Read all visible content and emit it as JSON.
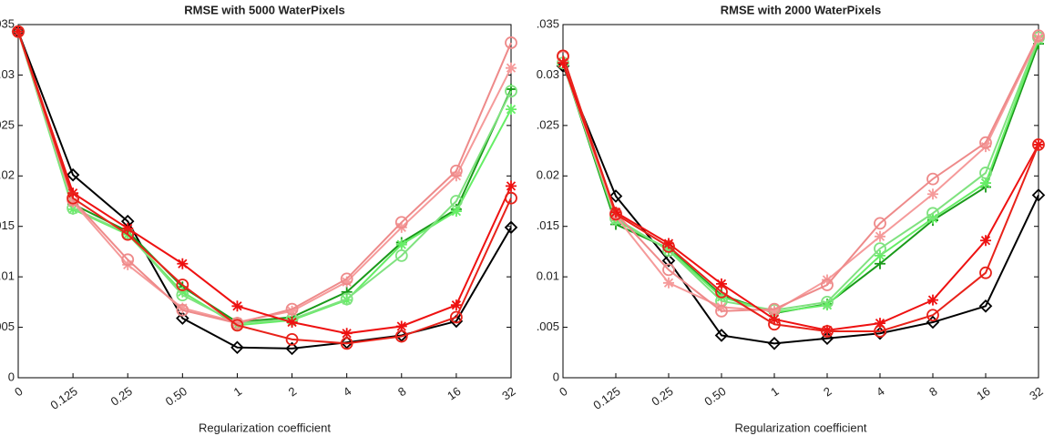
{
  "chart_data": [
    {
      "type": "line",
      "title": "RMSE with 5000 WaterPixels",
      "x_label": "Regularization coefficient",
      "categories": [
        "0",
        "0.125",
        "0.25",
        "0.50",
        "1",
        "2",
        "4",
        "8",
        "16",
        "32"
      ],
      "ylim": [
        0,
        0.035
      ],
      "yticks": [
        0,
        {
          "value": 0.005,
          "label": ".005"
        },
        {
          "value": 0.01,
          "label": "0.01"
        },
        {
          "value": 0.015,
          "label": ".015"
        },
        {
          "value": 0.02,
          "label": "0.02"
        },
        {
          "value": 0.025,
          "label": ".025"
        },
        {
          "value": 0.03,
          "label": "0.03"
        },
        {
          "value": 0.035,
          "label": ".035"
        }
      ],
      "series": [
        {
          "color": "#000000",
          "marker": "diamond",
          "values": [
            0.0343,
            0.0201,
            0.0155,
            0.0059,
            0.003,
            0.0029,
            0.0035,
            0.0042,
            0.0056,
            0.0149
          ]
        },
        {
          "color": "#1a9a1a",
          "marker": "plus",
          "values": [
            0.0343,
            0.0172,
            0.0145,
            0.009,
            0.0055,
            0.006,
            0.0085,
            0.0134,
            0.0167,
            0.0286
          ]
        },
        {
          "color": "#66ee66",
          "marker": "asterisk",
          "values": [
            0.0343,
            0.0167,
            0.0142,
            0.0085,
            0.0052,
            0.0057,
            0.0077,
            0.0132,
            0.0165,
            0.0266
          ]
        },
        {
          "color": "#7fe27f",
          "marker": "circle",
          "values": [
            0.0343,
            0.0168,
            0.0143,
            0.0082,
            0.0054,
            0.0058,
            0.0078,
            0.0121,
            0.0175,
            0.0284
          ]
        },
        {
          "color": "#f59a9a",
          "marker": "asterisk",
          "values": [
            0.0343,
            0.0174,
            0.0112,
            0.0069,
            0.0055,
            0.0066,
            0.0095,
            0.0149,
            0.02,
            0.0307
          ]
        },
        {
          "color": "#ee8a8a",
          "marker": "circle",
          "values": [
            0.0343,
            0.0176,
            0.0117,
            0.0067,
            0.0054,
            0.0068,
            0.0098,
            0.0154,
            0.0205,
            0.0332
          ]
        },
        {
          "color": "#ee1111",
          "marker": "asterisk",
          "values": [
            0.0343,
            0.0183,
            0.0148,
            0.0113,
            0.0071,
            0.0055,
            0.0044,
            0.0051,
            0.0072,
            0.019
          ]
        },
        {
          "color": "#e8221a",
          "marker": "circle",
          "values": [
            0.0343,
            0.0178,
            0.0142,
            0.0092,
            0.0052,
            0.0038,
            0.0034,
            0.0041,
            0.006,
            0.0178
          ]
        }
      ]
    },
    {
      "type": "line",
      "title": "RMSE with 2000 WaterPixels",
      "x_label": "Regularization coefficient",
      "categories": [
        "0",
        "0.125",
        "0.25",
        "0.50",
        "1",
        "2",
        "4",
        "8",
        "16",
        "32"
      ],
      "ylim": [
        0,
        0.035
      ],
      "yticks": [
        0,
        {
          "value": 0.005,
          "label": ".005"
        },
        {
          "value": 0.01,
          "label": "0.01"
        },
        {
          "value": 0.015,
          "label": ".015"
        },
        {
          "value": 0.02,
          "label": "0.02"
        },
        {
          "value": 0.025,
          "label": ".025"
        },
        {
          "value": 0.03,
          "label": "0.03"
        },
        {
          "value": 0.035,
          "label": ".035"
        }
      ],
      "series": [
        {
          "color": "#000000",
          "marker": "diamond",
          "values": [
            0.0309,
            0.018,
            0.0116,
            0.0042,
            0.0034,
            0.0039,
            0.0044,
            0.0055,
            0.0071,
            0.0181
          ]
        },
        {
          "color": "#1a9a1a",
          "marker": "plus",
          "values": [
            0.0312,
            0.0152,
            0.0128,
            0.0082,
            0.0064,
            0.0073,
            0.0113,
            0.0156,
            0.0189,
            0.0331
          ]
        },
        {
          "color": "#66ee66",
          "marker": "asterisk",
          "values": [
            0.0312,
            0.0156,
            0.0127,
            0.008,
            0.0065,
            0.0072,
            0.0121,
            0.0158,
            0.0193,
            0.0335
          ]
        },
        {
          "color": "#7fe27f",
          "marker": "circle",
          "values": [
            0.0312,
            0.0158,
            0.0126,
            0.0076,
            0.0067,
            0.0075,
            0.0128,
            0.0163,
            0.0203,
            0.0337
          ]
        },
        {
          "color": "#f59a9a",
          "marker": "asterisk",
          "values": [
            0.0312,
            0.016,
            0.0094,
            0.007,
            0.0066,
            0.0097,
            0.014,
            0.0182,
            0.0229,
            0.0337
          ]
        },
        {
          "color": "#ee8a8a",
          "marker": "circle",
          "values": [
            0.0318,
            0.0163,
            0.0107,
            0.0066,
            0.0068,
            0.0092,
            0.0153,
            0.0197,
            0.0233,
            0.0339
          ]
        },
        {
          "color": "#ee1111",
          "marker": "asterisk",
          "values": [
            0.0312,
            0.0164,
            0.0133,
            0.0093,
            0.0058,
            0.0047,
            0.0054,
            0.0077,
            0.0136,
            0.0231
          ]
        },
        {
          "color": "#e8221a",
          "marker": "circle",
          "values": [
            0.0319,
            0.0162,
            0.013,
            0.0085,
            0.0053,
            0.0046,
            0.0046,
            0.0062,
            0.0104,
            0.0231
          ]
        }
      ]
    }
  ]
}
